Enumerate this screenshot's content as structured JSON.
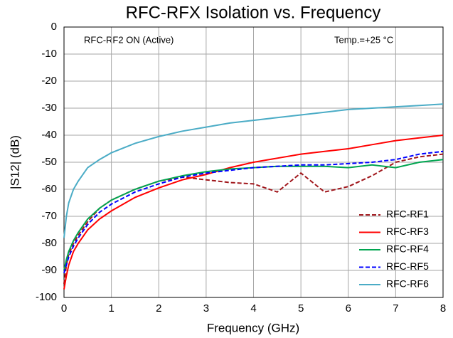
{
  "chart_data": {
    "type": "line",
    "title": "RFC-RFX Isolation vs. Frequency",
    "xlabel": "Frequency (GHz)",
    "ylabel": "|S12| (dB)",
    "annotations": [
      "RFC-RF2 ON (Active)",
      "Temp.=+25 °C"
    ],
    "x": [
      0,
      0.05,
      0.1,
      0.2,
      0.3,
      0.5,
      0.75,
      1,
      1.5,
      2,
      2.5,
      3,
      3.5,
      4,
      4.5,
      5,
      5.5,
      6,
      6.5,
      7,
      7.5,
      8
    ],
    "series": [
      {
        "name": "RFC-RF1",
        "color": "#a0161b",
        "dashed": true,
        "values": [
          -95,
          -88,
          -84,
          -80,
          -77,
          -72,
          -67,
          -64,
          -60,
          -57,
          -55.5,
          -56.5,
          -57.5,
          -58,
          -61,
          -54,
          -61,
          -59,
          -55,
          -50,
          -48,
          -47
        ]
      },
      {
        "name": "RFC-RF3",
        "color": "#ff0000",
        "dashed": false,
        "values": [
          -97,
          -92,
          -88,
          -83,
          -80,
          -75,
          -71,
          -68,
          -63,
          -59.5,
          -56.5,
          -54.5,
          -52,
          -50,
          -48.5,
          -47,
          -46,
          -45,
          -43.5,
          -42,
          -41,
          -40
        ]
      },
      {
        "name": "RFC-RF4",
        "color": "#00a550",
        "dashed": false,
        "values": [
          -90,
          -86,
          -83,
          -79,
          -76,
          -71,
          -67,
          -64,
          -60,
          -57,
          -55,
          -53.5,
          -52.5,
          -52,
          -51.5,
          -51.5,
          -51.5,
          -52,
          -51,
          -52,
          -50,
          -49
        ]
      },
      {
        "name": "RFC-RF5",
        "color": "#0000ff",
        "dashed": true,
        "values": [
          -91,
          -88,
          -85,
          -81,
          -78,
          -73,
          -68.5,
          -65.5,
          -61,
          -58,
          -55.5,
          -54,
          -53,
          -52,
          -51.5,
          -51,
          -51,
          -50.5,
          -50,
          -49,
          -47,
          -46
        ]
      },
      {
        "name": "RFC-RF6",
        "color": "#4bacc6",
        "dashed": false,
        "values": [
          -78,
          -70,
          -65,
          -60,
          -57,
          -52,
          -49,
          -46.5,
          -43,
          -40.5,
          -38.5,
          -37,
          -35.5,
          -34.5,
          -33.5,
          -32.5,
          -31.5,
          -30.5,
          -30,
          -29.5,
          -29,
          -28.5
        ]
      }
    ],
    "xlim": [
      0,
      8
    ],
    "xticks": [
      0,
      1,
      2,
      3,
      4,
      5,
      6,
      7,
      8
    ],
    "ylim": [
      -100,
      0
    ],
    "yticks": [
      0,
      -10,
      -20,
      -30,
      -40,
      -50,
      -60,
      -70,
      -80,
      -90,
      -100
    ],
    "grid": true,
    "legend": "lower right"
  }
}
